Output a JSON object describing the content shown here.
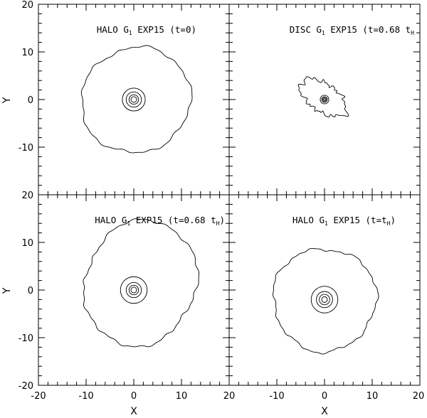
{
  "figure": {
    "xlabel": "X",
    "ylabel": "Y",
    "xlim": [
      -20,
      20
    ],
    "ylim": [
      -20,
      20
    ],
    "major_ticks": [
      -20,
      -10,
      0,
      10,
      20
    ],
    "minor_tick_step": 2
  },
  "chart_data": [
    {
      "type": "contour",
      "title": {
        "pre": "HALO G",
        "sub1": "1",
        "mid": " EXP15 (t=0)",
        "sub2": "",
        "post": ""
      },
      "center": [
        0,
        0
      ],
      "inner_contour_radii": [
        0.6,
        1.0,
        1.6,
        2.4
      ],
      "outer_contour": {
        "type": "irregular-ring",
        "mean_radius": 11.3,
        "x_range": [
          -11.2,
          11.6
        ],
        "y_range": [
          -11.2,
          11.0
        ]
      }
    },
    {
      "type": "contour",
      "title": {
        "pre": "DISC G",
        "sub1": "1",
        "mid": " EXP15 (t=0.68 t",
        "sub2": "H",
        "post": ""
      },
      "center": [
        0,
        0
      ],
      "inner_contour_radii": [
        0.2,
        0.4,
        0.6,
        0.9
      ],
      "outer_contour": {
        "type": "irregular-elongated",
        "x_range": [
          -5.0,
          4.5
        ],
        "y_range": [
          -5.0,
          5.8
        ],
        "position_angle_deg": -35
      }
    },
    {
      "type": "contour",
      "title": {
        "pre": "HALO G",
        "sub1": "1",
        "mid": " EXP15 (t=0.68 t",
        "sub2": "H",
        "post": ")"
      },
      "center": [
        0,
        0
      ],
      "inner_contour_radii": [
        0.6,
        1.0,
        1.6,
        2.8
      ],
      "outer_contour": {
        "type": "irregular-lopsided",
        "x_range": [
          -12.5,
          14.6
        ],
        "y_range": [
          -11.0,
          12.5
        ]
      }
    },
    {
      "type": "contour",
      "title": {
        "pre": "HALO G",
        "sub1": "1",
        "mid": " EXP15 (t=t",
        "sub2": "H",
        "post": ")"
      },
      "center": [
        0,
        -2
      ],
      "inner_contour_radii": [
        0.6,
        1.1,
        1.7,
        2.8
      ],
      "outer_contour": {
        "type": "irregular-ring",
        "x_range": [
          -11.8,
          11.8
        ],
        "y_range": [
          -12.8,
          8.7
        ]
      }
    }
  ]
}
